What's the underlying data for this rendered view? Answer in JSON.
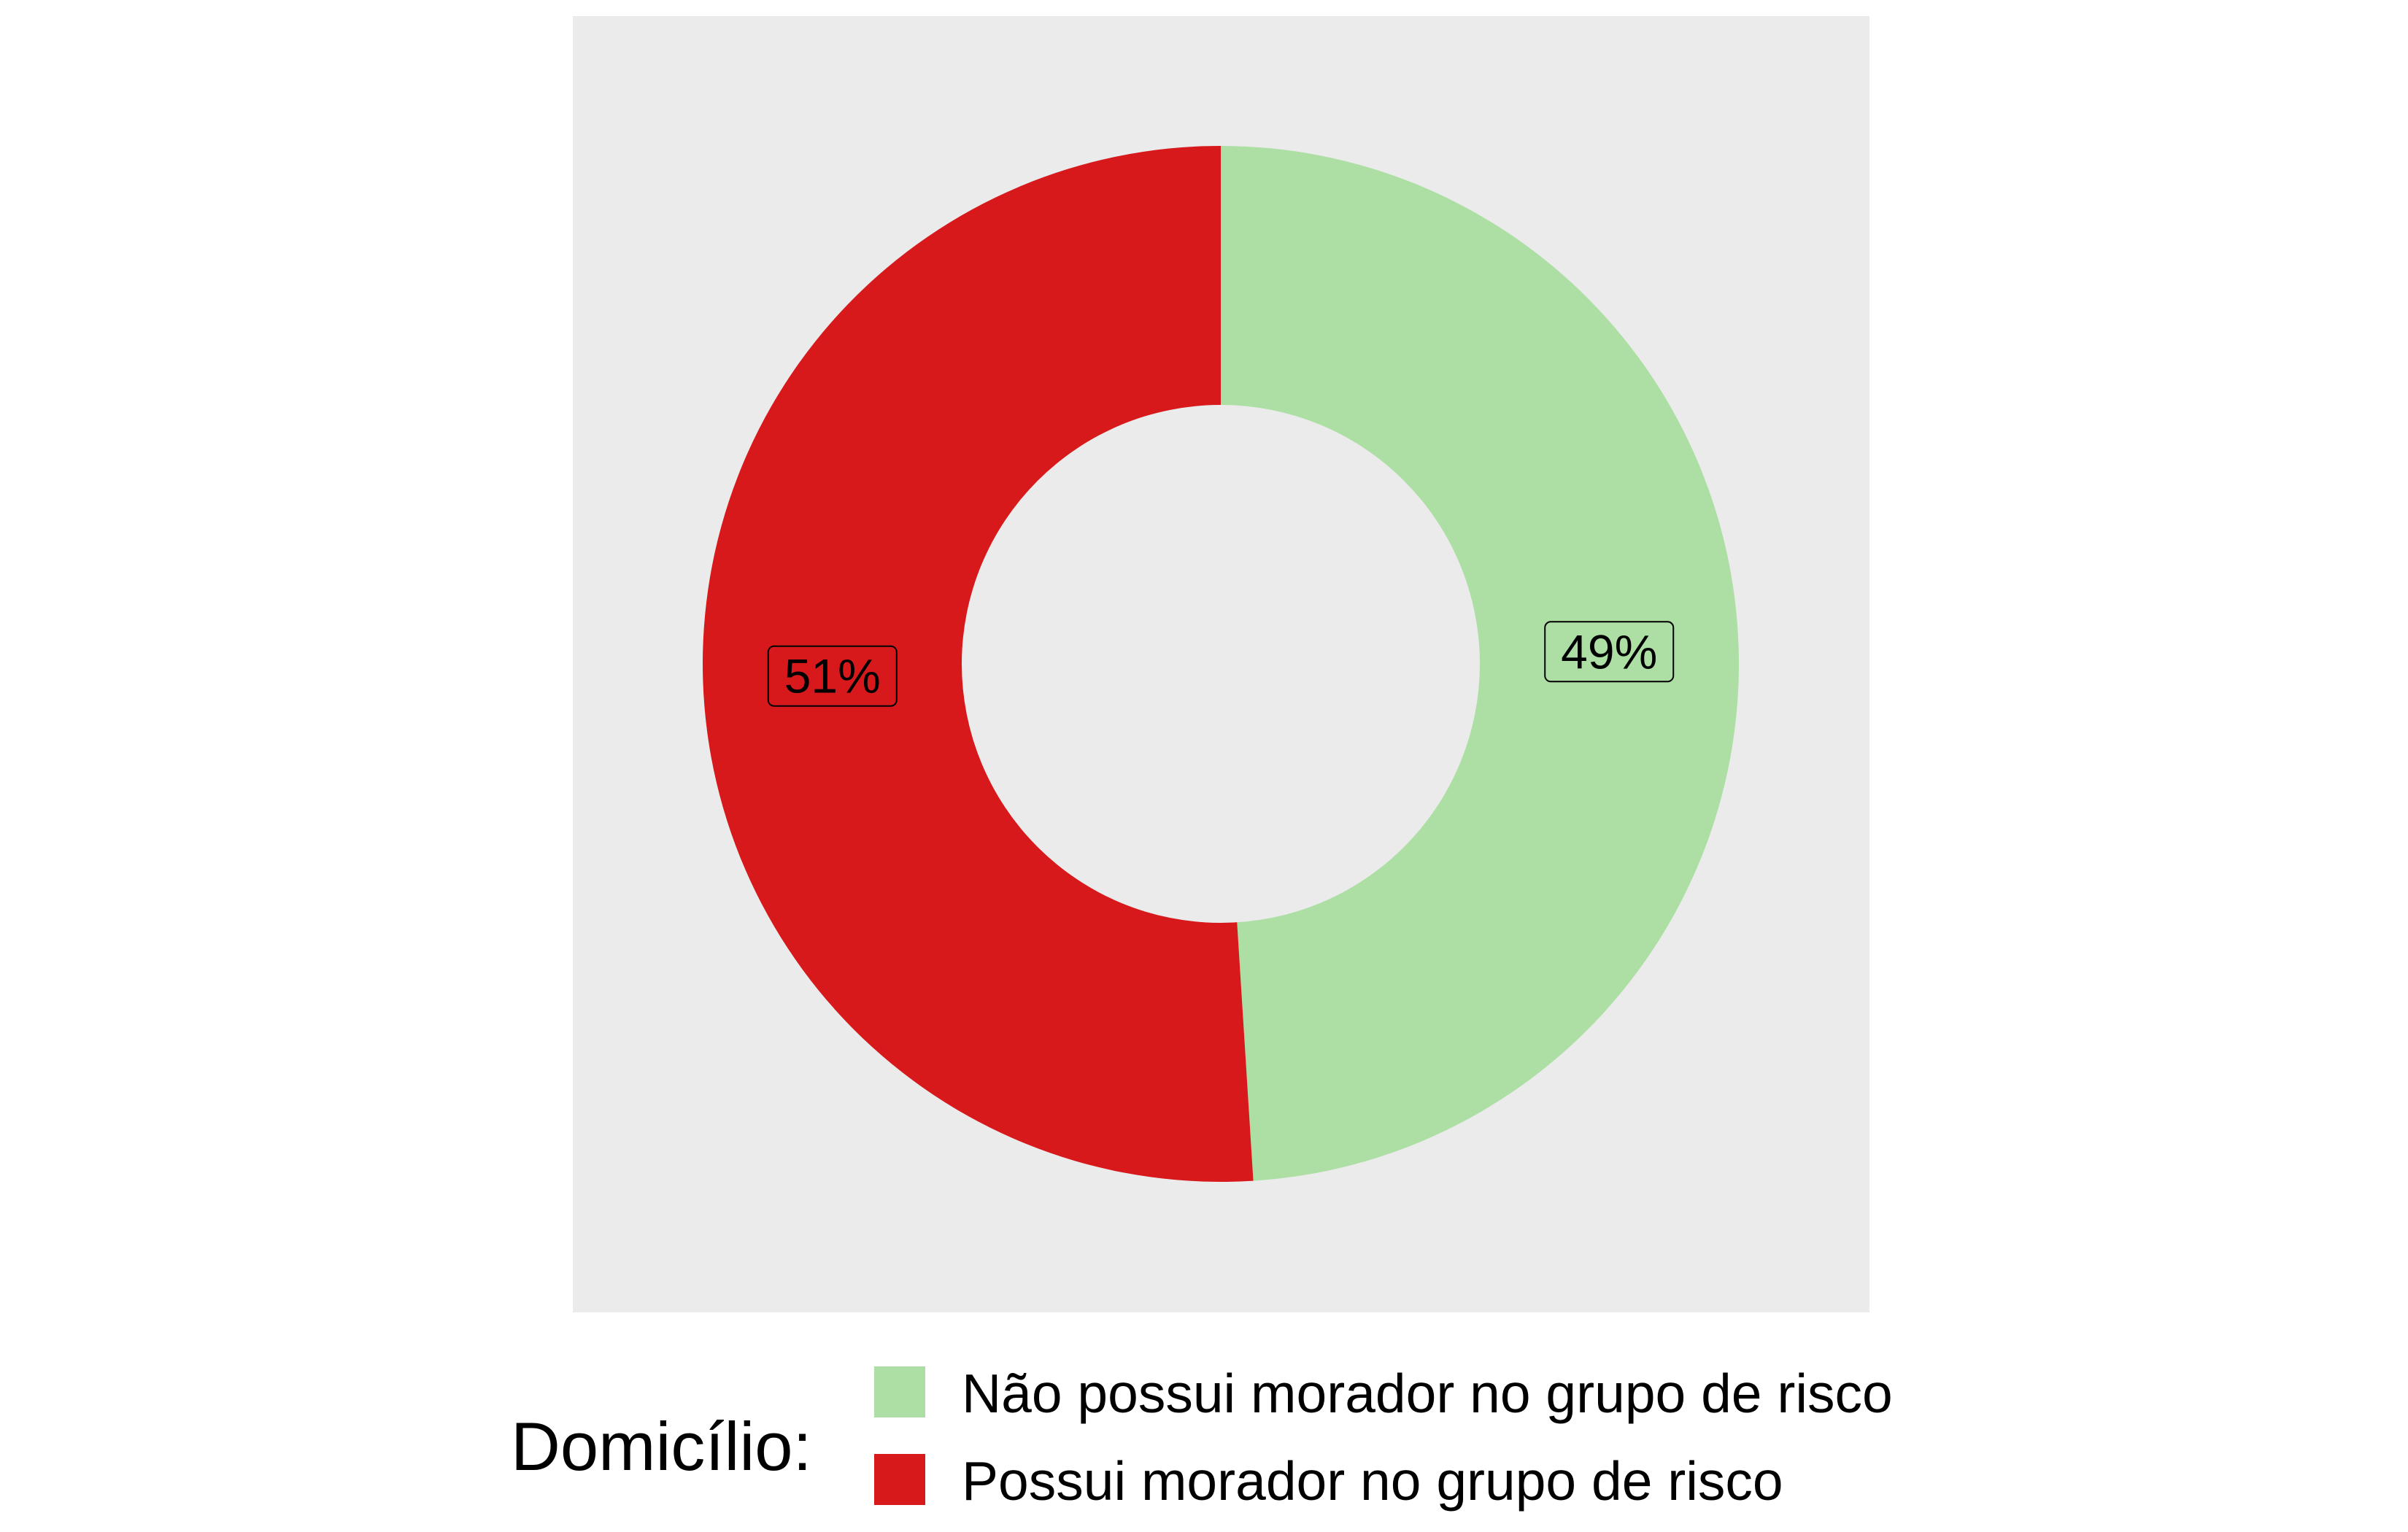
{
  "chart_data": {
    "type": "pie",
    "donut": true,
    "title": "",
    "slices": [
      {
        "label": "Não possui morador no grupo de risco",
        "value": 49,
        "display": "49%",
        "color": "#addfa5"
      },
      {
        "label": "Possui morador no grupo de risco",
        "value": 51,
        "display": "51%",
        "color": "#d7191c"
      }
    ],
    "legend": {
      "title": "Domicílio:",
      "placement": "bottom"
    },
    "panel_background": "#ebebeb",
    "start_angle": "12 o'clock",
    "direction": "clockwise"
  }
}
